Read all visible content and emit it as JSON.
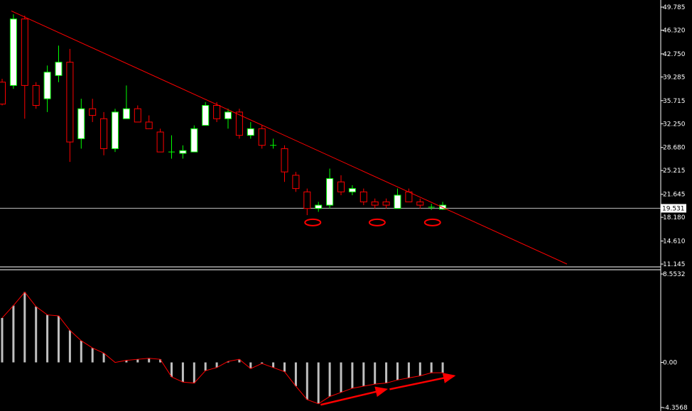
{
  "chart_data": [
    {
      "type": "candlestick",
      "title": "",
      "ylim": [
        11.145,
        49.785
      ],
      "y_ticks": [
        "49.785",
        "46.320",
        "42.750",
        "39.285",
        "35.715",
        "32.250",
        "28.680",
        "25.215",
        "21.645",
        "18.180",
        "14.610",
        "11.145"
      ],
      "current_price_label": "19.531",
      "current_price": 19.531,
      "candles": [
        {
          "o": 38.5,
          "h": 39.0,
          "l": 35.0,
          "c": 35.2
        },
        {
          "o": 38.0,
          "h": 48.7,
          "l": 37.5,
          "c": 48.0
        },
        {
          "o": 48.0,
          "h": 48.5,
          "l": 33.0,
          "c": 38.0
        },
        {
          "o": 38.0,
          "h": 38.5,
          "l": 34.5,
          "c": 35.0
        },
        {
          "o": 36.0,
          "h": 41.0,
          "l": 34.0,
          "c": 40.0
        },
        {
          "o": 39.5,
          "h": 44.0,
          "l": 38.5,
          "c": 41.5
        },
        {
          "o": 41.5,
          "h": 43.5,
          "l": 26.5,
          "c": 29.5
        },
        {
          "o": 30.0,
          "h": 36.0,
          "l": 28.5,
          "c": 34.5
        },
        {
          "o": 34.5,
          "h": 36.0,
          "l": 32.5,
          "c": 33.5
        },
        {
          "o": 33.0,
          "h": 34.0,
          "l": 27.5,
          "c": 28.5
        },
        {
          "o": 28.5,
          "h": 34.5,
          "l": 28.0,
          "c": 34.0
        },
        {
          "o": 33.0,
          "h": 38.0,
          "l": 33.0,
          "c": 34.5
        },
        {
          "o": 34.5,
          "h": 35.0,
          "l": 32.5,
          "c": 32.5
        },
        {
          "o": 32.5,
          "h": 33.5,
          "l": 31.5,
          "c": 31.5
        },
        {
          "o": 31.0,
          "h": 31.5,
          "l": 28.0,
          "c": 28.0
        },
        {
          "o": 28.0,
          "h": 30.5,
          "l": 27.0,
          "c": 28.0
        },
        {
          "o": 27.8,
          "h": 29.0,
          "l": 27.0,
          "c": 28.2
        },
        {
          "o": 28.0,
          "h": 32.0,
          "l": 28.0,
          "c": 31.5
        },
        {
          "o": 32.0,
          "h": 35.5,
          "l": 32.0,
          "c": 35.0
        },
        {
          "o": 35.0,
          "h": 35.5,
          "l": 32.5,
          "c": 33.0
        },
        {
          "o": 33.0,
          "h": 34.5,
          "l": 31.5,
          "c": 34.0
        },
        {
          "o": 34.0,
          "h": 34.5,
          "l": 30.0,
          "c": 30.5
        },
        {
          "o": 30.5,
          "h": 32.5,
          "l": 30.0,
          "c": 31.5
        },
        {
          "o": 31.5,
          "h": 32.0,
          "l": 28.5,
          "c": 29.0
        },
        {
          "o": 29.0,
          "h": 30.0,
          "l": 28.5,
          "c": 29.0
        },
        {
          "o": 28.5,
          "h": 29.0,
          "l": 23.5,
          "c": 25.0
        },
        {
          "o": 24.5,
          "h": 25.0,
          "l": 22.0,
          "c": 22.5
        },
        {
          "o": 22.0,
          "h": 22.5,
          "l": 18.5,
          "c": 19.5
        },
        {
          "o": 19.5,
          "h": 20.5,
          "l": 19.0,
          "c": 20.0
        },
        {
          "o": 20.0,
          "h": 25.5,
          "l": 19.5,
          "c": 24.0
        },
        {
          "o": 23.5,
          "h": 24.5,
          "l": 21.5,
          "c": 22.0
        },
        {
          "o": 22.0,
          "h": 23.0,
          "l": 21.5,
          "c": 22.5
        },
        {
          "o": 22.0,
          "h": 22.5,
          "l": 20.0,
          "c": 20.5
        },
        {
          "o": 20.5,
          "h": 21.0,
          "l": 19.5,
          "c": 20.0
        },
        {
          "o": 20.5,
          "h": 21.0,
          "l": 19.5,
          "c": 20.0
        },
        {
          "o": 19.5,
          "h": 22.5,
          "l": 19.5,
          "c": 21.5
        },
        {
          "o": 22.0,
          "h": 22.5,
          "l": 20.5,
          "c": 20.5
        },
        {
          "o": 20.5,
          "h": 21.0,
          "l": 19.5,
          "c": 20.0
        },
        {
          "o": 19.8,
          "h": 20.2,
          "l": 19.3,
          "c": 19.6
        },
        {
          "o": 19.4,
          "h": 20.5,
          "l": 19.3,
          "c": 20.0
        }
      ]
    },
    {
      "type": "bar",
      "title": "",
      "ylim": [
        -4.3568,
        8.5532
      ],
      "y_ticks": [
        "8.5532",
        "0.00",
        "-4.3568"
      ],
      "values": [
        4.3,
        5.5,
        6.8,
        5.4,
        4.6,
        4.5,
        3.1,
        2.1,
        1.4,
        0.9,
        0.0,
        0.2,
        0.3,
        0.4,
        0.3,
        -1.4,
        -1.9,
        -2.0,
        -0.8,
        -0.5,
        0.1,
        0.3,
        -0.6,
        -0.1,
        -0.5,
        -0.9,
        -2.3,
        -3.6,
        -4.0,
        -3.3,
        -2.9,
        -2.5,
        -2.3,
        -2.1,
        -2.0,
        -1.7,
        -1.5,
        -1.3,
        -1.0,
        -1.0
      ]
    }
  ],
  "colors": {
    "background": "#000000",
    "grid_line": "#ffffff",
    "trend_line": "#ff0000",
    "bull_candle": "#ffffff",
    "bear_candle": "#ff0000",
    "doji_candle": "#00ff00",
    "wick_bull": "#00ff00",
    "wick_bear": "#ff0000",
    "histogram": "#c0c0c0",
    "histogram_line": "#ff0000",
    "annotation": "#ff0000"
  }
}
